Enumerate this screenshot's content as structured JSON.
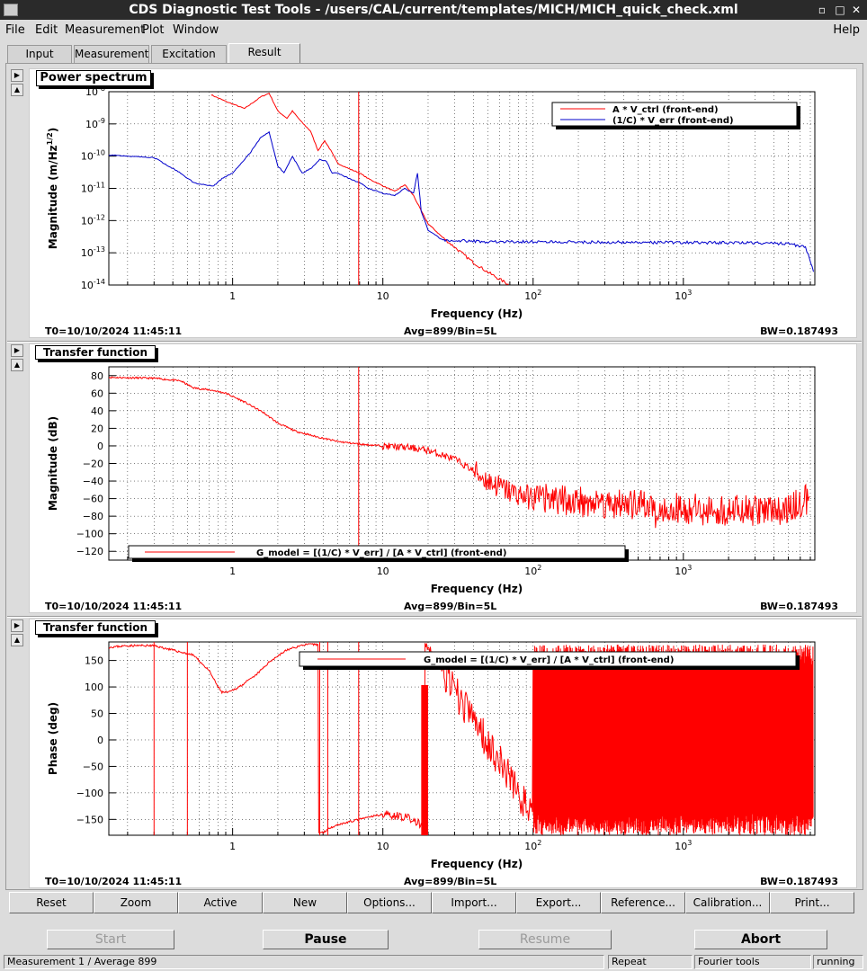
{
  "window": {
    "title": "CDS Diagnostic Test Tools - /users/CAL/current/templates/MICH/MICH_quick_check.xml"
  },
  "menu": {
    "file": "File",
    "edit": "Edit",
    "measurement": "Measurement",
    "plot": "Plot",
    "window": "Window",
    "help": "Help"
  },
  "tabs": [
    "Input",
    "Measurement",
    "Excitation",
    "Result"
  ],
  "panels": [
    {
      "title": "Power spectrum",
      "ylabel": "Magnitude (m/Hz",
      "ylabel_sup": "1/2",
      "ylabel_close": ")",
      "xlabel": "Frequency (Hz)",
      "yticks": [
        "10",
        "10",
        "10",
        "10",
        "10",
        "10",
        "10"
      ],
      "yticks_exp": [
        "-8",
        "-9",
        "-10",
        "-11",
        "-12",
        "-13",
        "-14"
      ],
      "xticks": [
        "1",
        "10",
        "10",
        "10"
      ],
      "xticks_exp": [
        "",
        "",
        "2",
        "3"
      ],
      "legend": [
        "A * V_ctrl (front-end)",
        "(1/C) * V_err (front-end)"
      ],
      "footer": {
        "t0": "T0=10/10/2024 11:45:11",
        "avg": "Avg=899/Bin=5L",
        "bw": "BW=0.187493"
      }
    },
    {
      "title": "Transfer function",
      "ylabel": "Magnitude (dB)",
      "xlabel": "Frequency (Hz)",
      "yticks": [
        "80",
        "60",
        "40",
        "20",
        "0",
        "−20",
        "−40",
        "−60",
        "−80",
        "−100",
        "−120"
      ],
      "xticks": [
        "1",
        "10",
        "10",
        "10"
      ],
      "xticks_exp": [
        "",
        "",
        "2",
        "3"
      ],
      "legend": [
        "G_model = [(1/C) * V_err] / [A * V_ctrl] (front-end)"
      ],
      "footer": {
        "t0": "T0=10/10/2024 11:45:11",
        "avg": "Avg=899/Bin=5L",
        "bw": "BW=0.187493"
      }
    },
    {
      "title": "Transfer function",
      "ylabel": "Phase (deg)",
      "xlabel": "Frequency (Hz)",
      "yticks": [
        "150",
        "100",
        "50",
        "0",
        "−50",
        "−100",
        "−150"
      ],
      "xticks": [
        "1",
        "10",
        "10",
        "10"
      ],
      "xticks_exp": [
        "",
        "",
        "2",
        "3"
      ],
      "legend": [
        "G_model = [(1/C) * V_err] / [A * V_ctrl] (front-end)"
      ],
      "footer": {
        "t0": "T0=10/10/2024 11:45:11",
        "avg": "Avg=899/Bin=5L",
        "bw": "BW=0.187493"
      }
    }
  ],
  "toolbar": [
    "Reset",
    "Zoom",
    "Active",
    "New",
    "Options...",
    "Import...",
    "Export...",
    "Reference...",
    "Calibration...",
    "Print..."
  ],
  "controls": {
    "start": "Start",
    "pause": "Pause",
    "resume": "Resume",
    "abort": "Abort"
  },
  "status": {
    "measurement": "Measurement 1 / Average 899",
    "repeat": "Repeat",
    "fourier": "Fourier tools",
    "state": "running"
  },
  "colors": {
    "red": "#ff0000",
    "blue": "#0000cc",
    "titlebar": "#2a2a2a"
  },
  "chart_data": [
    {
      "type": "line",
      "title": "Power spectrum",
      "xlabel": "Frequency (Hz)",
      "ylabel": "Magnitude (m/Hz^1/2)",
      "xscale": "log",
      "yscale": "log",
      "xlim": [
        0.15,
        7500
      ],
      "ylim": [
        1e-14,
        1e-08
      ],
      "grid": true,
      "legend": "top-right",
      "series": [
        {
          "name": "A * V_ctrl (front-end)",
          "color": "#ff0000",
          "x": [
            0.72,
            0.9,
            1.2,
            1.55,
            1.75,
            2.0,
            2.3,
            2.5,
            2.9,
            3.3,
            3.7,
            4.1,
            4.5,
            5,
            6,
            7,
            8,
            10,
            12,
            14,
            16,
            18,
            20,
            25,
            30,
            40,
            50,
            60,
            70
          ],
          "y": [
            8e-09,
            5e-09,
            3e-09,
            7e-09,
            9e-09,
            2.5e-09,
            1.5e-09,
            2.5e-09,
            1.1e-09,
            6e-10,
            1.5e-10,
            3e-10,
            1.5e-10,
            6e-11,
            4e-11,
            3e-11,
            2e-11,
            1.2e-11,
            8e-12,
            1.3e-11,
            6e-12,
            2e-12,
            8e-13,
            3e-13,
            1.5e-13,
            5e-14,
            2.5e-14,
            1.5e-14,
            1e-14
          ]
        },
        {
          "name": "(1/C) * V_err (front-end)",
          "color": "#0000cc",
          "x": [
            0.15,
            0.3,
            0.45,
            0.55,
            0.65,
            0.75,
            0.85,
            1.0,
            1.3,
            1.55,
            1.75,
            2.0,
            2.2,
            2.5,
            2.9,
            3.3,
            3.8,
            4.2,
            4.6,
            5,
            6,
            7,
            8,
            10,
            12,
            14,
            16,
            17,
            18,
            20,
            25,
            50,
            100,
            500,
            1000,
            3000,
            5000,
            6500,
            7500
          ],
          "y": [
            1.1e-10,
            9e-11,
            3e-11,
            1.5e-11,
            1.3e-11,
            1.2e-11,
            2e-11,
            3e-11,
            1.2e-10,
            4e-10,
            5.5e-10,
            5e-11,
            3e-11,
            1e-10,
            3e-11,
            4e-11,
            8e-11,
            7e-11,
            3e-11,
            3e-11,
            2e-11,
            1.5e-11,
            1e-11,
            7e-12,
            6e-12,
            1e-11,
            7e-12,
            3e-11,
            2e-12,
            5e-13,
            2.5e-13,
            2.2e-13,
            2.2e-13,
            2.1e-13,
            2.1e-13,
            2e-13,
            1.9e-13,
            1.5e-13,
            2e-14
          ]
        }
      ]
    },
    {
      "type": "line",
      "title": "Transfer function",
      "xlabel": "Frequency (Hz)",
      "ylabel": "Magnitude (dB)",
      "xscale": "log",
      "xlim": [
        0.15,
        7500
      ],
      "ylim": [
        -130,
        90
      ],
      "grid": true,
      "legend": "bottom-left",
      "series": [
        {
          "name": "G_model = [(1/C) * V_err] / [A * V_ctrl] (front-end)",
          "color": "#ff0000",
          "x": [
            0.15,
            0.3,
            0.45,
            0.55,
            0.75,
            0.9,
            1.2,
            1.6,
            2.0,
            2.6,
            3.5,
            5,
            7,
            10,
            15,
            20,
            30,
            40,
            50,
            70,
            100,
            200,
            500,
            1000,
            3000,
            5000,
            7000
          ],
          "y": [
            78,
            77,
            74,
            66,
            63,
            60,
            50,
            38,
            26,
            17,
            11,
            5,
            2,
            0,
            -2,
            -5,
            -15,
            -28,
            -40,
            -52,
            -60,
            -63,
            -68,
            -72,
            -74,
            -72,
            -58
          ]
        }
      ]
    },
    {
      "type": "line",
      "title": "Transfer function",
      "xlabel": "Frequency (Hz)",
      "ylabel": "Phase (deg)",
      "xscale": "log",
      "xlim": [
        0.15,
        7500
      ],
      "ylim": [
        -180,
        180
      ],
      "grid": true,
      "legend": "top-right",
      "series": [
        {
          "name": "G_model = [(1/C) * V_err] / [A * V_ctrl] (front-end)",
          "color": "#ff0000",
          "x": [
            0.15,
            0.2,
            0.3,
            0.55,
            0.7,
            0.8,
            0.85,
            0.95,
            1.1,
            1.4,
            1.8,
            2.3,
            3.0,
            3.5,
            4.0,
            4.5,
            5,
            7,
            10,
            14,
            18,
            20,
            25,
            30,
            40,
            60,
            80,
            100
          ],
          "y": [
            175,
            178,
            178,
            160,
            130,
            100,
            90,
            90,
            100,
            120,
            150,
            170,
            180,
            180,
            -175,
            -165,
            -160,
            -150,
            -140,
            -145,
            -160,
            175,
            130,
            90,
            40,
            -40,
            -100,
            -150
          ]
        }
      ]
    }
  ]
}
